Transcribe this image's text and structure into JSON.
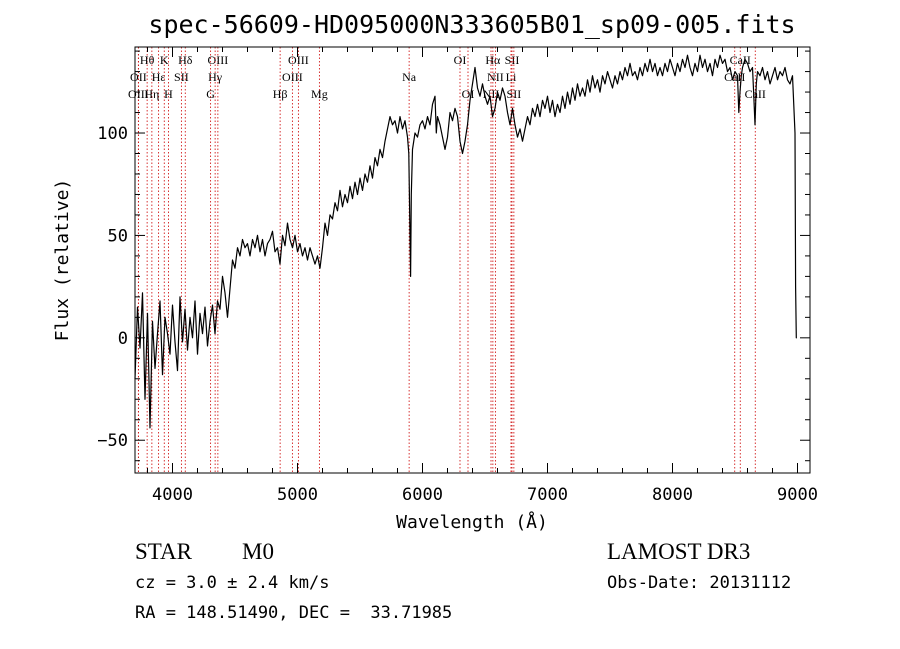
{
  "chart_data": {
    "type": "line",
    "title": "spec-56609-HD095000N333605B01_sp09-005.fits",
    "xlabel": "Wavelength (Å)",
    "ylabel": "Flux (relative)",
    "xlim": [
      3700,
      9100
    ],
    "ylim": [
      -66,
      142
    ],
    "xticks": [
      4000,
      5000,
      6000,
      7000,
      8000,
      9000
    ],
    "yticks": [
      -50,
      0,
      50,
      100
    ],
    "grid": false,
    "series": [
      {
        "points": [
          [
            3700,
            -20
          ],
          [
            3720,
            15
          ],
          [
            3740,
            -5
          ],
          [
            3760,
            22
          ],
          [
            3780,
            -30
          ],
          [
            3800,
            12
          ],
          [
            3820,
            -44
          ],
          [
            3840,
            8
          ],
          [
            3860,
            -15
          ],
          [
            3880,
            2
          ],
          [
            3900,
            18
          ],
          [
            3920,
            -18
          ],
          [
            3940,
            10
          ],
          [
            3960,
            2
          ],
          [
            3980,
            -8
          ],
          [
            4000,
            16
          ],
          [
            4020,
            -2
          ],
          [
            4040,
            -16
          ],
          [
            4060,
            20
          ],
          [
            4080,
            -2
          ],
          [
            4100,
            14
          ],
          [
            4120,
            -6
          ],
          [
            4140,
            10
          ],
          [
            4160,
            0
          ],
          [
            4180,
            18
          ],
          [
            4200,
            -8
          ],
          [
            4220,
            12
          ],
          [
            4240,
            2
          ],
          [
            4260,
            15
          ],
          [
            4280,
            -4
          ],
          [
            4300,
            8
          ],
          [
            4320,
            16
          ],
          [
            4340,
            2
          ],
          [
            4360,
            18
          ],
          [
            4380,
            14
          ],
          [
            4400,
            30
          ],
          [
            4420,
            22
          ],
          [
            4440,
            10
          ],
          [
            4460,
            24
          ],
          [
            4480,
            38
          ],
          [
            4500,
            34
          ],
          [
            4520,
            44
          ],
          [
            4540,
            40
          ],
          [
            4560,
            48
          ],
          [
            4580,
            44
          ],
          [
            4600,
            46
          ],
          [
            4620,
            40
          ],
          [
            4640,
            48
          ],
          [
            4660,
            44
          ],
          [
            4680,
            50
          ],
          [
            4700,
            42
          ],
          [
            4720,
            48
          ],
          [
            4740,
            40
          ],
          [
            4760,
            46
          ],
          [
            4780,
            48
          ],
          [
            4800,
            52
          ],
          [
            4820,
            42
          ],
          [
            4840,
            44
          ],
          [
            4860,
            36
          ],
          [
            4880,
            50
          ],
          [
            4900,
            45
          ],
          [
            4920,
            56
          ],
          [
            4940,
            48
          ],
          [
            4960,
            44
          ],
          [
            4980,
            50
          ],
          [
            5000,
            42
          ],
          [
            5020,
            46
          ],
          [
            5040,
            40
          ],
          [
            5060,
            44
          ],
          [
            5080,
            38
          ],
          [
            5100,
            44
          ],
          [
            5120,
            40
          ],
          [
            5140,
            36
          ],
          [
            5160,
            40
          ],
          [
            5180,
            34
          ],
          [
            5200,
            44
          ],
          [
            5220,
            56
          ],
          [
            5240,
            50
          ],
          [
            5260,
            60
          ],
          [
            5280,
            58
          ],
          [
            5300,
            66
          ],
          [
            5320,
            62
          ],
          [
            5340,
            72
          ],
          [
            5360,
            64
          ],
          [
            5380,
            70
          ],
          [
            5400,
            66
          ],
          [
            5420,
            74
          ],
          [
            5440,
            68
          ],
          [
            5460,
            76
          ],
          [
            5480,
            70
          ],
          [
            5500,
            78
          ],
          [
            5520,
            72
          ],
          [
            5540,
            80
          ],
          [
            5560,
            76
          ],
          [
            5580,
            84
          ],
          [
            5600,
            78
          ],
          [
            5620,
            88
          ],
          [
            5640,
            84
          ],
          [
            5660,
            92
          ],
          [
            5680,
            88
          ],
          [
            5700,
            96
          ],
          [
            5720,
            102
          ],
          [
            5740,
            108
          ],
          [
            5760,
            104
          ],
          [
            5780,
            106
          ],
          [
            5800,
            100
          ],
          [
            5820,
            108
          ],
          [
            5840,
            102
          ],
          [
            5860,
            106
          ],
          [
            5880,
            98
          ],
          [
            5890,
            90
          ],
          [
            5900,
            50
          ],
          [
            5905,
            30
          ],
          [
            5910,
            70
          ],
          [
            5920,
            92
          ],
          [
            5940,
            100
          ],
          [
            5960,
            98
          ],
          [
            5980,
            104
          ],
          [
            6000,
            106
          ],
          [
            6020,
            102
          ],
          [
            6040,
            108
          ],
          [
            6060,
            104
          ],
          [
            6080,
            114
          ],
          [
            6100,
            118
          ],
          [
            6110,
            100
          ],
          [
            6120,
            108
          ],
          [
            6140,
            104
          ],
          [
            6160,
            98
          ],
          [
            6180,
            92
          ],
          [
            6200,
            98
          ],
          [
            6220,
            110
          ],
          [
            6240,
            106
          ],
          [
            6260,
            112
          ],
          [
            6280,
            108
          ],
          [
            6300,
            96
          ],
          [
            6320,
            90
          ],
          [
            6340,
            96
          ],
          [
            6360,
            104
          ],
          [
            6380,
            116
          ],
          [
            6400,
            124
          ],
          [
            6420,
            132
          ],
          [
            6440,
            122
          ],
          [
            6460,
            118
          ],
          [
            6480,
            124
          ],
          [
            6500,
            118
          ],
          [
            6520,
            114
          ],
          [
            6540,
            118
          ],
          [
            6560,
            108
          ],
          [
            6580,
            112
          ],
          [
            6600,
            120
          ],
          [
            6620,
            116
          ],
          [
            6640,
            122
          ],
          [
            6660,
            118
          ],
          [
            6680,
            110
          ],
          [
            6700,
            104
          ],
          [
            6720,
            112
          ],
          [
            6740,
            104
          ],
          [
            6760,
            98
          ],
          [
            6780,
            102
          ],
          [
            6800,
            96
          ],
          [
            6820,
            102
          ],
          [
            6840,
            108
          ],
          [
            6860,
            104
          ],
          [
            6880,
            112
          ],
          [
            6900,
            108
          ],
          [
            6920,
            114
          ],
          [
            6940,
            108
          ],
          [
            6960,
            116
          ],
          [
            6980,
            112
          ],
          [
            7000,
            118
          ],
          [
            7020,
            110
          ],
          [
            7040,
            116
          ],
          [
            7060,
            108
          ],
          [
            7080,
            114
          ],
          [
            7100,
            110
          ],
          [
            7120,
            118
          ],
          [
            7140,
            112
          ],
          [
            7160,
            120
          ],
          [
            7180,
            114
          ],
          [
            7200,
            122
          ],
          [
            7220,
            116
          ],
          [
            7240,
            124
          ],
          [
            7260,
            118
          ],
          [
            7280,
            122
          ],
          [
            7300,
            118
          ],
          [
            7320,
            126
          ],
          [
            7340,
            120
          ],
          [
            7360,
            128
          ],
          [
            7380,
            122
          ],
          [
            7400,
            126
          ],
          [
            7420,
            120
          ],
          [
            7440,
            128
          ],
          [
            7460,
            124
          ],
          [
            7480,
            130
          ],
          [
            7500,
            126
          ],
          [
            7520,
            122
          ],
          [
            7540,
            128
          ],
          [
            7560,
            124
          ],
          [
            7580,
            130
          ],
          [
            7600,
            126
          ],
          [
            7620,
            132
          ],
          [
            7640,
            128
          ],
          [
            7660,
            134
          ],
          [
            7680,
            128
          ],
          [
            7700,
            130
          ],
          [
            7720,
            126
          ],
          [
            7740,
            132
          ],
          [
            7760,
            128
          ],
          [
            7780,
            134
          ],
          [
            7800,
            130
          ],
          [
            7820,
            136
          ],
          [
            7840,
            130
          ],
          [
            7860,
            134
          ],
          [
            7880,
            128
          ],
          [
            7900,
            132
          ],
          [
            7920,
            128
          ],
          [
            7940,
            134
          ],
          [
            7960,
            130
          ],
          [
            7980,
            136
          ],
          [
            8000,
            132
          ],
          [
            8020,
            128
          ],
          [
            8040,
            134
          ],
          [
            8060,
            130
          ],
          [
            8080,
            136
          ],
          [
            8100,
            132
          ],
          [
            8120,
            138
          ],
          [
            8140,
            132
          ],
          [
            8160,
            128
          ],
          [
            8180,
            134
          ],
          [
            8200,
            130
          ],
          [
            8220,
            138
          ],
          [
            8240,
            132
          ],
          [
            8260,
            136
          ],
          [
            8280,
            130
          ],
          [
            8300,
            134
          ],
          [
            8320,
            128
          ],
          [
            8340,
            136
          ],
          [
            8360,
            132
          ],
          [
            8380,
            138
          ],
          [
            8400,
            134
          ],
          [
            8420,
            136
          ],
          [
            8440,
            130
          ],
          [
            8460,
            132
          ],
          [
            8480,
            126
          ],
          [
            8500,
            130
          ],
          [
            8520,
            128
          ],
          [
            8530,
            110
          ],
          [
            8540,
            120
          ],
          [
            8550,
            128
          ],
          [
            8560,
            132
          ],
          [
            8580,
            136
          ],
          [
            8600,
            134
          ],
          [
            8620,
            130
          ],
          [
            8640,
            132
          ],
          [
            8650,
            118
          ],
          [
            8660,
            104
          ],
          [
            8670,
            124
          ],
          [
            8680,
            130
          ],
          [
            8700,
            128
          ],
          [
            8720,
            132
          ],
          [
            8740,
            126
          ],
          [
            8760,
            130
          ],
          [
            8780,
            124
          ],
          [
            8800,
            128
          ],
          [
            8820,
            132
          ],
          [
            8840,
            126
          ],
          [
            8860,
            130
          ],
          [
            8880,
            128
          ],
          [
            8900,
            132
          ],
          [
            8920,
            126
          ],
          [
            8940,
            124
          ],
          [
            8960,
            128
          ],
          [
            8980,
            100
          ],
          [
            8985,
            25
          ],
          [
            8990,
            0
          ],
          [
            8995,
            0
          ]
        ]
      }
    ],
    "line_markers": [
      {
        "label": "Hθ",
        "wave": 3797,
        "row": 0
      },
      {
        "label": "OII",
        "wave": 3727,
        "row": 1
      },
      {
        "label": "OIII",
        "wave": 3727,
        "row": 2
      },
      {
        "label": "Hε",
        "wave": 3889,
        "row": 1
      },
      {
        "label": "Hη",
        "wave": 3835,
        "row": 2
      },
      {
        "label": "K",
        "wave": 3934,
        "row": 0
      },
      {
        "label": "SII",
        "wave": 4071,
        "row": 1
      },
      {
        "label": "H",
        "wave": 3968,
        "row": 2
      },
      {
        "label": "Hδ",
        "wave": 4102,
        "row": 0
      },
      {
        "label": "OIII",
        "wave": 4363,
        "row": 0
      },
      {
        "label": "Hγ",
        "wave": 4341,
        "row": 1
      },
      {
        "label": "G",
        "wave": 4305,
        "row": 2
      },
      {
        "label": "OIII",
        "wave": 5007,
        "row": 0
      },
      {
        "label": "OIII",
        "wave": 4959,
        "row": 1
      },
      {
        "label": "Hβ",
        "wave": 4861,
        "row": 2
      },
      {
        "label": "Mg",
        "wave": 5175,
        "row": 2
      },
      {
        "label": "Na",
        "wave": 5893,
        "row": 1
      },
      {
        "label": "OI",
        "wave": 6300,
        "row": 0
      },
      {
        "label": "OI",
        "wave": 6364,
        "row": 2
      },
      {
        "label": "Hα",
        "wave": 6563,
        "row": 0
      },
      {
        "label": "SII",
        "wave": 6716,
        "row": 0
      },
      {
        "label": "NII",
        "wave": 6583,
        "row": 1
      },
      {
        "label": "Li",
        "wave": 6708,
        "row": 1
      },
      {
        "label": "NII",
        "wave": 6548,
        "row": 2
      },
      {
        "label": "SII",
        "wave": 6731,
        "row": 2
      },
      {
        "label": "CaII",
        "wave": 8542,
        "row": 0
      },
      {
        "label": "CaII",
        "wave": 8498,
        "row": 1
      },
      {
        "label": "CaII",
        "wave": 8662,
        "row": 2
      }
    ]
  },
  "info": {
    "object_class": "STAR",
    "subclass": "M0",
    "cz": "cz = 3.0 ± 2.4 km/s",
    "coords": "RA = 148.51490, DEC =  33.71985",
    "survey": "LAMOST DR3",
    "obs_date": "Obs-Date: 20131112"
  }
}
